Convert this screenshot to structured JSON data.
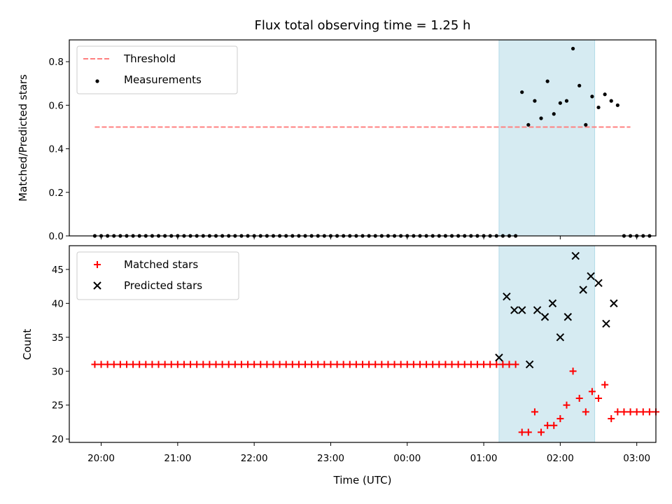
{
  "chart_data": {
    "title": "Flux total observing time = 1.25 h",
    "type": "scatter",
    "x_unit": "time (UTC)",
    "xlabel": "Time (UTC)",
    "x_ticks": [
      "20:00",
      "21:00",
      "22:00",
      "23:00",
      "00:00",
      "01:00",
      "02:00",
      "03:00"
    ],
    "x_tick_hours": [
      0,
      1,
      2,
      3,
      4,
      5,
      6,
      7
    ],
    "xlim": [
      "19:35",
      "03:15"
    ],
    "observing_window": {
      "start": "01:12",
      "end": "02:27",
      "color": "#add8e6"
    },
    "panels": [
      {
        "ylabel": "Matched/Predicted stars",
        "ylim": [
          0,
          0.9
        ],
        "y_ticks": [
          "0.0",
          "0.2",
          "0.4",
          "0.6",
          "0.8"
        ],
        "legend_position": "upper-left",
        "threshold": {
          "name": "Threshold",
          "value": 0.5,
          "x_range": [
            "19:55",
            "02:55"
          ],
          "color": "#ff8080",
          "style": "dashed"
        },
        "series": [
          {
            "name": "Measurements",
            "marker": "dot",
            "color": "#000000",
            "time_range": [
              "19:55",
              "02:55"
            ],
            "interval_minutes": 5,
            "values": [
              0,
              0,
              0,
              0,
              0,
              0,
              0,
              0,
              0,
              0,
              0,
              0,
              0,
              0,
              0,
              0,
              0,
              0,
              0,
              0,
              0,
              0,
              0,
              0,
              0,
              0,
              0,
              0,
              0,
              0,
              0,
              0,
              0,
              0,
              0,
              0,
              0,
              0,
              0,
              0,
              0,
              0,
              0,
              0,
              0,
              0,
              0,
              0,
              0,
              0,
              0,
              0,
              0,
              0,
              0,
              0,
              0,
              0,
              0,
              0,
              0,
              0,
              0,
              0,
              0,
              0,
              0,
              0.66,
              0.51,
              0.62,
              0.54,
              0.71,
              0.56,
              0.61,
              0.62,
              0.86,
              0.69,
              0.51,
              0.64,
              0.59,
              0.65,
              0.62,
              0.6,
              0,
              0,
              0,
              0,
              0
            ]
          }
        ]
      },
      {
        "ylabel": "Count",
        "ylim": [
          19.5,
          48.5
        ],
        "y_ticks": [
          "20",
          "25",
          "30",
          "35",
          "40",
          "45"
        ],
        "legend_position": "upper-left",
        "series": [
          {
            "name": "Matched stars",
            "marker": "plus",
            "color": "#ff0000",
            "time_range": [
              "19:55",
              "02:55"
            ],
            "interval_minutes": 5,
            "values": [
              31,
              31,
              31,
              31,
              31,
              31,
              31,
              31,
              31,
              31,
              31,
              31,
              31,
              31,
              31,
              31,
              31,
              31,
              31,
              31,
              31,
              31,
              31,
              31,
              31,
              31,
              31,
              31,
              31,
              31,
              31,
              31,
              31,
              31,
              31,
              31,
              31,
              31,
              31,
              31,
              31,
              31,
              31,
              31,
              31,
              31,
              31,
              31,
              31,
              31,
              31,
              31,
              31,
              31,
              31,
              31,
              31,
              31,
              31,
              31,
              31,
              31,
              31,
              31,
              31,
              31,
              31,
              21,
              21,
              24,
              21,
              22,
              22,
              23,
              25,
              30,
              26,
              24,
              27,
              26,
              28,
              23,
              24,
              24,
              24,
              24,
              24,
              24,
              24
            ]
          },
          {
            "name": "Predicted stars",
            "marker": "x",
            "color": "#000000",
            "points": [
              [
                "01:12",
                32
              ],
              [
                "01:18",
                41
              ],
              [
                "01:24",
                39
              ],
              [
                "01:30",
                39
              ],
              [
                "01:36",
                31
              ],
              [
                "01:42",
                39
              ],
              [
                "01:48",
                38
              ],
              [
                "01:54",
                40
              ],
              [
                "02:00",
                35
              ],
              [
                "02:06",
                38
              ],
              [
                "02:12",
                47
              ],
              [
                "02:18",
                42
              ],
              [
                "02:24",
                44
              ],
              [
                "02:30",
                43
              ],
              [
                "02:36",
                37
              ],
              [
                "02:42",
                40
              ]
            ]
          }
        ]
      }
    ]
  }
}
